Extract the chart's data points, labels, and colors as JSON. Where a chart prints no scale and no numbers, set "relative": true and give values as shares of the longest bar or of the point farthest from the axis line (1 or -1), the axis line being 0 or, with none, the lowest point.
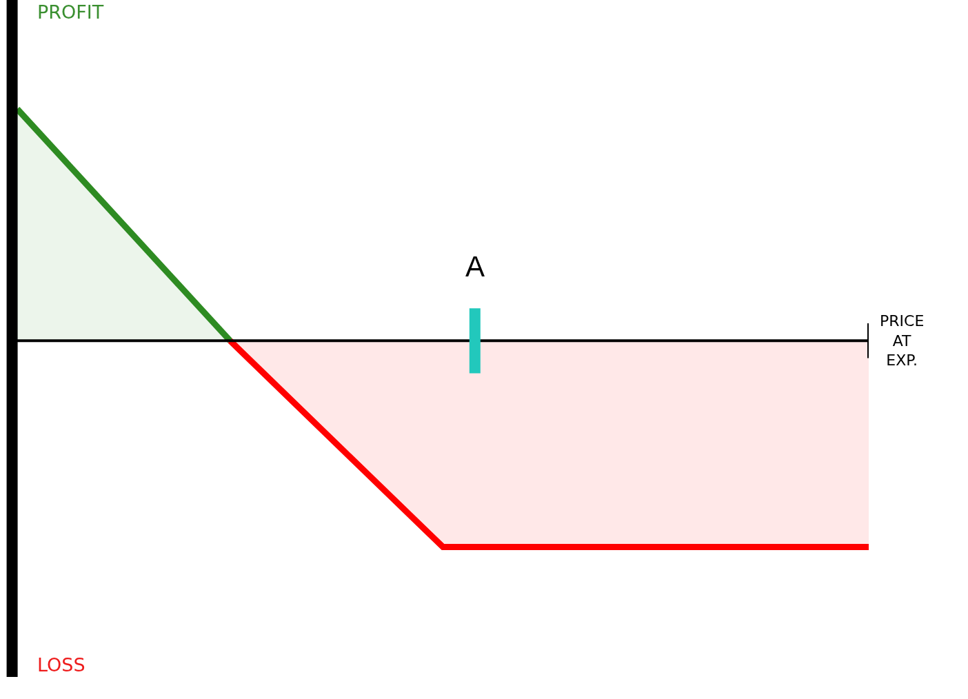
{
  "chart_data": {
    "type": "area",
    "relative": true,
    "xlabel": "PRICE AT EXP.",
    "categories": [
      null,
      null,
      null,
      null,
      null
    ],
    "series": [
      {
        "color": "#2e8b22",
        "values": [
          1,
          0,
          null,
          null,
          null
        ]
      },
      {
        "color": "#ff0000",
        "values": [
          null,
          0,
          -0.89,
          -0.89,
          -0.89
        ]
      }
    ],
    "annotations": [
      "PROFIT",
      "LOSS",
      "A"
    ]
  }
}
